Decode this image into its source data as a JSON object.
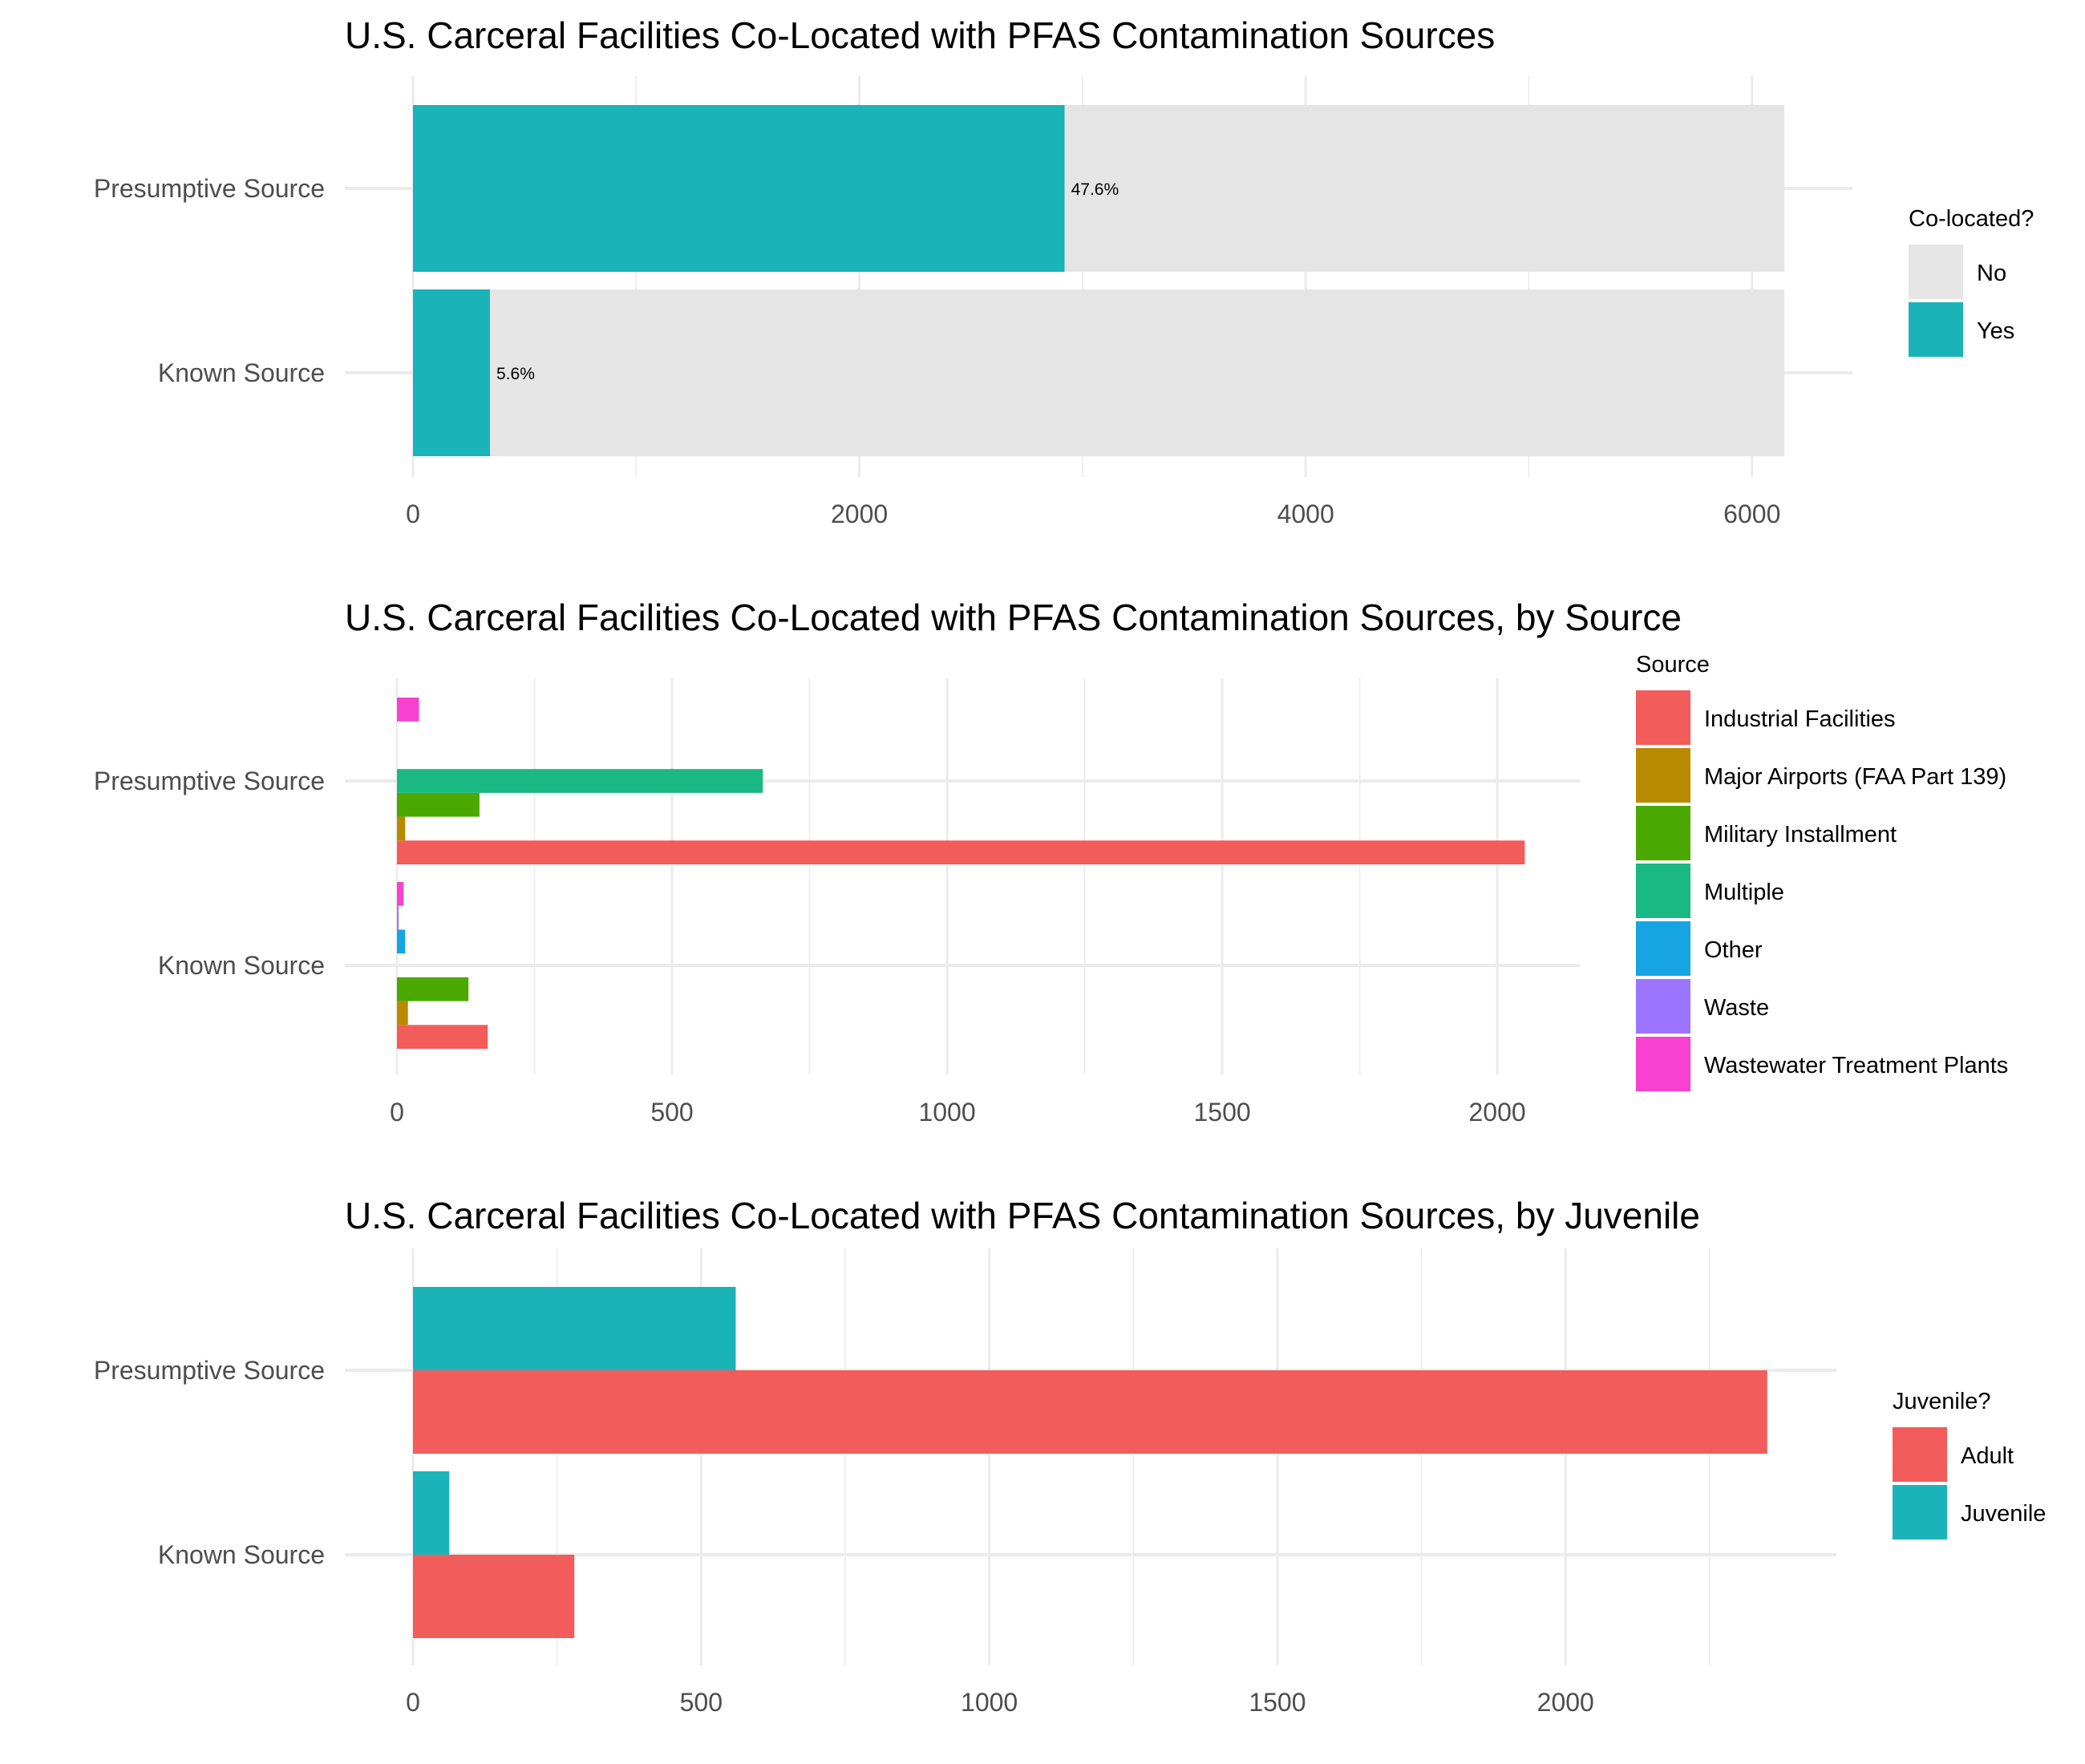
{
  "colors": {
    "no": "#e5e5e5",
    "yes": "#1ab3b8",
    "industrial": "#f25c5a",
    "airports": "#b88a00",
    "military": "#4aa800",
    "multiple": "#1ab883",
    "other": "#17a4e3",
    "waste": "#9b75ff",
    "wastewater": "#f641d1",
    "adult": "#f25c5a",
    "juvenile": "#1ab3b8"
  },
  "chart_data": [
    {
      "type": "bar",
      "orientation": "horizontal",
      "stacked": true,
      "title": "U.S. Carceral Facilities Co-Located with PFAS Contamination Sources",
      "categories": [
        "Presumptive Source",
        "Known Source"
      ],
      "series": [
        {
          "name": "Yes",
          "values": [
            2920,
            345
          ],
          "color_key": "yes"
        },
        {
          "name": "No",
          "values": [
            3225,
            5800
          ],
          "color_key": "no"
        }
      ],
      "data_labels": [
        "47.6%",
        "5.6%"
      ],
      "xticks": [
        0,
        2000,
        4000,
        6000
      ],
      "xlim": [
        0,
        6450
      ],
      "legend_title": "Co-located?",
      "legend_entries": [
        {
          "name": "No",
          "color_key": "no"
        },
        {
          "name": "Yes",
          "color_key": "yes"
        }
      ],
      "legend_position": "right",
      "grid": true
    },
    {
      "type": "bar",
      "orientation": "horizontal",
      "stacked": false,
      "title": "U.S. Carceral Facilities Co-Located with PFAS Contamination Sources, by Source",
      "categories": [
        "Presumptive Source",
        "Known Source"
      ],
      "series": [
        {
          "name": "Industrial Facilities",
          "values": [
            2050,
            165
          ],
          "color_key": "industrial"
        },
        {
          "name": "Major Airports (FAA Part 139)",
          "values": [
            15,
            20
          ],
          "color_key": "airports"
        },
        {
          "name": "Military Installment",
          "values": [
            150,
            130
          ],
          "color_key": "military"
        },
        {
          "name": "Multiple",
          "values": [
            665,
            null
          ],
          "color_key": "multiple"
        },
        {
          "name": "Other",
          "values": [
            null,
            15
          ],
          "color_key": "other"
        },
        {
          "name": "Waste",
          "values": [
            null,
            3
          ],
          "color_key": "waste"
        },
        {
          "name": "Wastewater Treatment Plants",
          "values": [
            40,
            12
          ],
          "color_key": "wastewater"
        }
      ],
      "xticks": [
        0,
        500,
        1000,
        1500,
        2000
      ],
      "xlim": [
        0,
        2150
      ],
      "legend_title": "Source",
      "legend_position": "right",
      "grid": true
    },
    {
      "type": "bar",
      "orientation": "horizontal",
      "stacked": false,
      "title": "U.S. Carceral Facilities Co-Located with PFAS Contamination Sources, by Juvenile",
      "categories": [
        "Presumptive Source",
        "Known Source"
      ],
      "series": [
        {
          "name": "Adult",
          "values": [
            2350,
            280
          ],
          "color_key": "adult"
        },
        {
          "name": "Juvenile",
          "values": [
            560,
            63
          ],
          "color_key": "juvenile"
        }
      ],
      "xticks": [
        0,
        500,
        1000,
        1500,
        2000
      ],
      "xlim": [
        0,
        2470
      ],
      "legend_title": "Juvenile?",
      "legend_position": "right",
      "grid": true
    }
  ]
}
